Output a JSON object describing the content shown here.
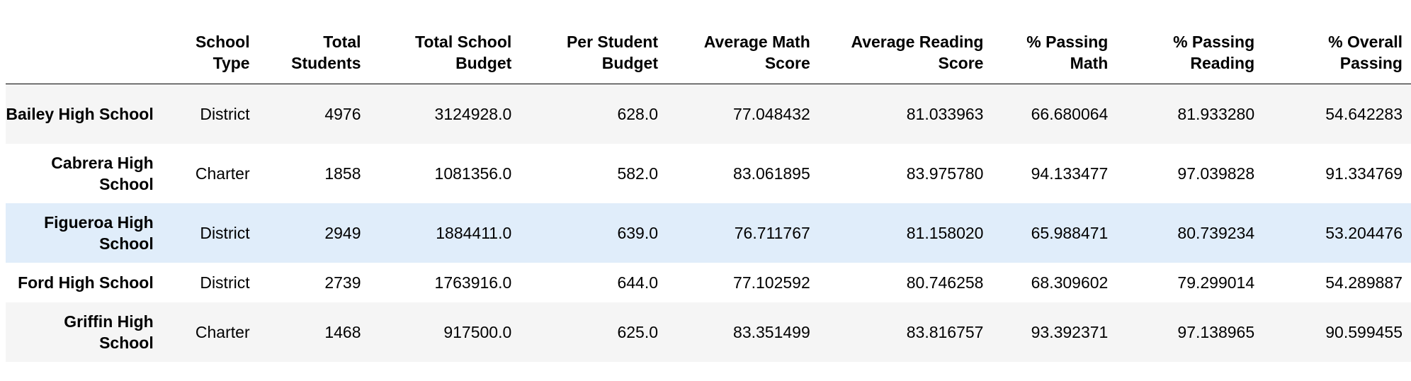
{
  "table": {
    "columns": [
      "",
      "School Type",
      "Total Students",
      "Total School Budget",
      "Per Student Budget",
      "Average Math Score",
      "Average Reading Score",
      "% Passing Math",
      "% Passing Reading",
      "% Overall Passing"
    ],
    "rows": [
      {
        "school": "Bailey High School",
        "cells": [
          "District",
          "4976",
          "3124928.0",
          "628.0",
          "77.048432",
          "81.033963",
          "66.680064",
          "81.933280",
          "54.642283"
        ]
      },
      {
        "school": "Cabrera High School",
        "cells": [
          "Charter",
          "1858",
          "1081356.0",
          "582.0",
          "83.061895",
          "83.975780",
          "94.133477",
          "97.039828",
          "91.334769"
        ]
      },
      {
        "school": "Figueroa High School",
        "cells": [
          "District",
          "2949",
          "1884411.0",
          "639.0",
          "76.711767",
          "81.158020",
          "65.988471",
          "80.739234",
          "53.204476"
        ]
      },
      {
        "school": "Ford High School",
        "cells": [
          "District",
          "2739",
          "1763916.0",
          "644.0",
          "77.102592",
          "80.746258",
          "68.309602",
          "79.299014",
          "54.289887"
        ]
      },
      {
        "school": "Griffin High School",
        "cells": [
          "Charter",
          "1468",
          "917500.0",
          "625.0",
          "83.351499",
          "83.816757",
          "93.392371",
          "97.138965",
          "90.599455"
        ]
      }
    ],
    "colors": {
      "striped_row": "#f5f5f5",
      "hovered_row": "#e0edfa",
      "header_rule": "#000000"
    },
    "hovered_row_school": "Figueroa High School"
  }
}
